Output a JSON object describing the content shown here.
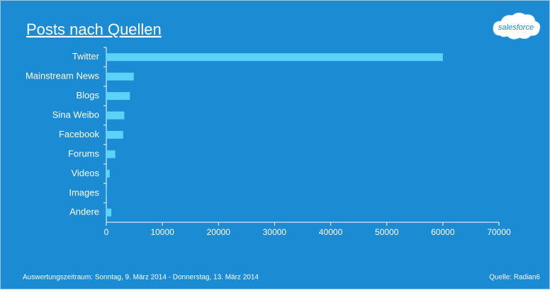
{
  "chart_data": {
    "type": "barh",
    "title": "Posts nach Quellen",
    "categories": [
      "Twitter",
      "Mainstream News",
      "Blogs",
      "Sina Weibo",
      "Facebook",
      "Forums",
      "Videos",
      "Images",
      "Andere"
    ],
    "values": [
      60000,
      4900,
      4200,
      3200,
      3000,
      1600,
      600,
      100,
      900
    ],
    "color": "#5bd3f6",
    "xlim": [
      0,
      70000
    ],
    "xticks": [
      0,
      10000,
      20000,
      30000,
      40000,
      50000,
      60000,
      70000
    ],
    "grid": false
  },
  "footer": {
    "period": "Auswertungszeitraum:  Sonntag, 9. März 2014 - Donnerstag, 13. März 2014",
    "source": "Quelle:  Radian6"
  },
  "logo": "salesforce"
}
